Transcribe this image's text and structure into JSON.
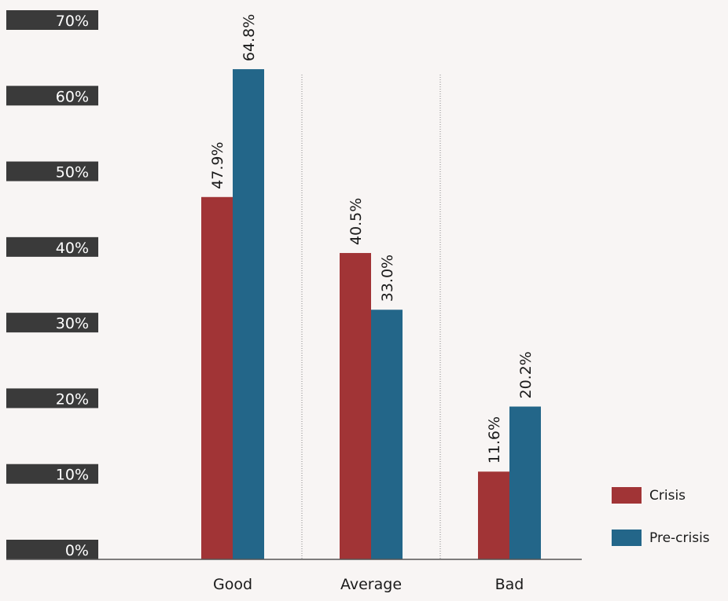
{
  "chart_data": {
    "type": "bar",
    "categories": [
      "Good",
      "Average",
      "Bad"
    ],
    "series": [
      {
        "name": "Crisis",
        "values": [
          47.9,
          40.5,
          11.6
        ],
        "color": "#a13436"
      },
      {
        "name": "Pre-crisis",
        "values": [
          64.8,
          33.0,
          20.2
        ],
        "color": "#236689"
      }
    ],
    "value_labels": [
      [
        "47.9%",
        "40.5%",
        "11.6%"
      ],
      [
        "64.8%",
        "33.0%",
        "20.2%"
      ]
    ],
    "y_ticks": [
      0,
      10,
      20,
      30,
      40,
      50,
      60,
      70
    ],
    "y_tick_labels": [
      "0%",
      "10%",
      "20%",
      "30%",
      "40%",
      "50%",
      "60%",
      "70%"
    ],
    "ylim": [
      0,
      70
    ],
    "title": "",
    "xlabel": "",
    "ylabel": "",
    "grid": false,
    "legend_position": "bottom-right",
    "colors": {
      "background": "#f8f5f4",
      "tick_box": "#3a3a3a",
      "axis": "#555555",
      "separator": "#888888"
    }
  }
}
